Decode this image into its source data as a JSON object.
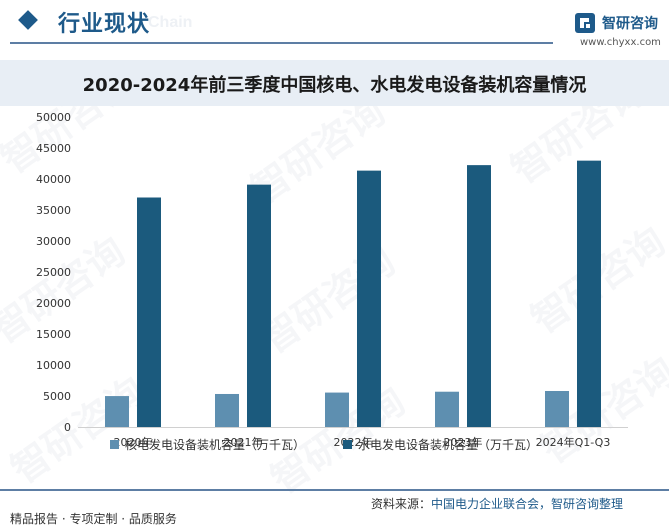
{
  "header": {
    "title": "行业现状",
    "ghost_text": "Chain",
    "logo_name": "智研咨询",
    "logo_url": "www.chyxx.com"
  },
  "chart_data": {
    "type": "bar",
    "title": "2020-2024年前三季度中国核电、水电发电设备装机容量情况",
    "categories": [
      "2020年",
      "2021年",
      "2022年",
      "2023年",
      "2024年Q1-Q3"
    ],
    "series": [
      {
        "name": "核电发电设备装机容量（万千瓦）",
        "color": "#5e8fb0",
        "values": [
          4989,
          5326,
          5553,
          5691,
          5808
        ]
      },
      {
        "name": "水电发电设备装机容量（万千瓦）",
        "color": "#1b5a7d",
        "values": [
          37016,
          39092,
          41350,
          42237,
          42960
        ]
      }
    ],
    "ylim": [
      0,
      50000
    ],
    "yticks": [
      "0",
      "5000",
      "10000",
      "15000",
      "20000",
      "25000",
      "30000",
      "35000",
      "40000",
      "45000",
      "50000"
    ],
    "grid": false,
    "legend": "bottom"
  },
  "footer": {
    "left_text": "精品报告 · 专项定制 · 品质服务",
    "source_label": "资料来源：",
    "source_value": "中国电力企业联合会，智研咨询整理"
  },
  "watermark": "智研咨询"
}
